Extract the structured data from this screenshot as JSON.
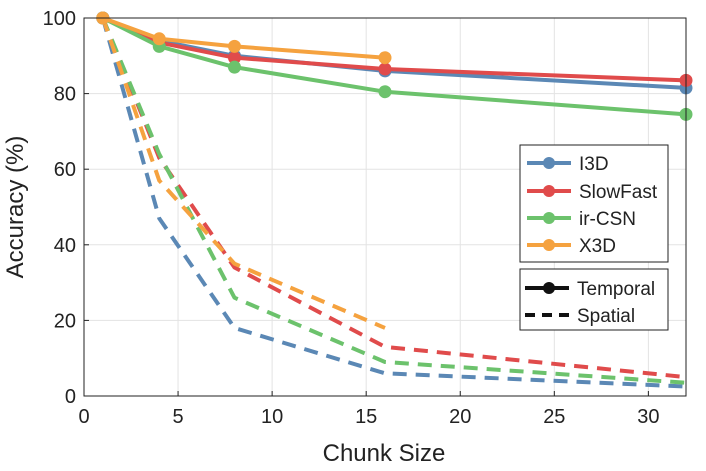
{
  "chart_data": {
    "type": "line",
    "title": "",
    "xlabel": "Chunk Size",
    "ylabel": "Accuracy (%)",
    "xlim": [
      0,
      32
    ],
    "ylim": [
      0,
      100
    ],
    "xticks": [
      0,
      5,
      10,
      15,
      20,
      25,
      30
    ],
    "yticks": [
      0,
      20,
      40,
      60,
      80,
      100
    ],
    "grid": true,
    "series": [
      {
        "name": "I3D",
        "color": "#5b88b5",
        "temporal": {
          "x": [
            1,
            4,
            8,
            16,
            32
          ],
          "y": [
            100,
            94,
            90,
            86,
            81.5
          ]
        },
        "spatial": {
          "x": [
            1,
            4,
            8,
            16,
            32
          ],
          "y": [
            100,
            47,
            18,
            6,
            2.5
          ]
        }
      },
      {
        "name": "SlowFast",
        "color": "#e04b4b",
        "temporal": {
          "x": [
            1,
            4,
            8,
            16,
            32
          ],
          "y": [
            100,
            93.5,
            89.5,
            86.5,
            83.5
          ]
        },
        "spatial": {
          "x": [
            1,
            4,
            8,
            16,
            32
          ],
          "y": [
            100,
            63,
            34,
            13,
            5
          ]
        }
      },
      {
        "name": "ir-CSN",
        "color": "#6cc26c",
        "temporal": {
          "x": [
            1,
            4,
            8,
            16,
            32
          ],
          "y": [
            100,
            92.5,
            87,
            80.5,
            74.5
          ]
        },
        "spatial": {
          "x": [
            1,
            4,
            8,
            16,
            32
          ],
          "y": [
            100,
            64,
            26,
            9,
            3.5
          ]
        }
      },
      {
        "name": "X3D",
        "color": "#f5a23f",
        "temporal": {
          "x": [
            1,
            4,
            8,
            16
          ],
          "y": [
            100,
            94.5,
            92.5,
            89.5
          ]
        },
        "spatial": {
          "x": [
            1,
            4,
            8,
            16
          ],
          "y": [
            100,
            57,
            35,
            18
          ]
        }
      }
    ],
    "legend": {
      "placement": "right",
      "styles": [
        {
          "label": "Temporal",
          "dash": "solid"
        },
        {
          "label": "Spatial",
          "dash": "dashed"
        }
      ]
    }
  }
}
